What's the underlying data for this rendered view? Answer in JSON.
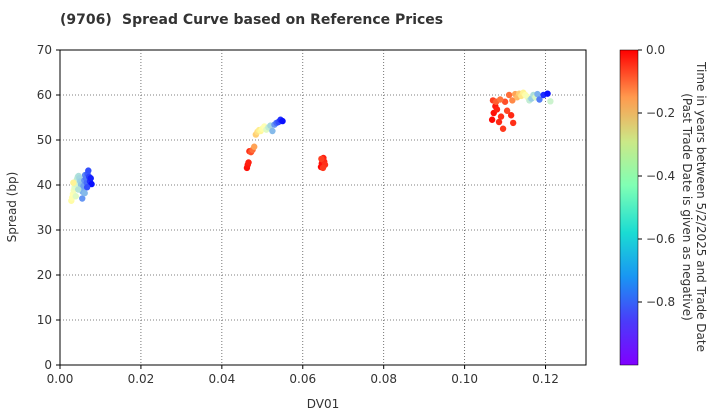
{
  "chart_data": {
    "type": "scatter",
    "code": "(9706)",
    "title": "Spread Curve based on Reference Prices",
    "xlabel": "DV01",
    "ylabel": "Spread (bp)",
    "xlim": [
      0,
      0.13
    ],
    "ylim": [
      0,
      70
    ],
    "x_ticks": [
      "0.00",
      "0.02",
      "0.04",
      "0.06",
      "0.08",
      "0.10",
      "0.12"
    ],
    "x_tick_values": [
      0,
      0.02,
      0.04,
      0.06,
      0.08,
      0.1,
      0.12
    ],
    "y_ticks": [
      "0",
      "10",
      "20",
      "30",
      "40",
      "50",
      "60",
      "70"
    ],
    "y_tick_values": [
      0,
      10,
      20,
      30,
      40,
      50,
      60,
      70
    ],
    "grid": true,
    "colorbar": {
      "label_line1": "Time in years between 5/2/2025 and Trade Date",
      "label_line2": "(Past Trade Date is given as negative)",
      "range": [
        -1.0,
        0.0
      ],
      "ticks": [
        "0.0",
        "−0.2",
        "−0.4",
        "−0.6",
        "−0.8"
      ],
      "tick_values": [
        0.0,
        -0.2,
        -0.4,
        -0.6,
        -0.8
      ],
      "colormap": "rainbow"
    },
    "clusters": [
      {
        "name": "cluster-1",
        "points": [
          {
            "x": 0.0028,
            "y": 36.5,
            "t": -0.45
          },
          {
            "x": 0.003,
            "y": 37.2,
            "t": -0.48
          },
          {
            "x": 0.0032,
            "y": 38.0,
            "t": -0.5
          },
          {
            "x": 0.0034,
            "y": 38.8,
            "t": -0.52
          },
          {
            "x": 0.0036,
            "y": 39.5,
            "t": -0.55
          },
          {
            "x": 0.0038,
            "y": 40.2,
            "t": -0.58
          },
          {
            "x": 0.004,
            "y": 40.8,
            "t": -0.6
          },
          {
            "x": 0.0042,
            "y": 41.3,
            "t": -0.62
          },
          {
            "x": 0.0044,
            "y": 41.8,
            "t": -0.64
          },
          {
            "x": 0.0046,
            "y": 42.0,
            "t": -0.66
          },
          {
            "x": 0.0048,
            "y": 41.5,
            "t": -0.68
          },
          {
            "x": 0.005,
            "y": 40.8,
            "t": -0.7
          },
          {
            "x": 0.0052,
            "y": 40.0,
            "t": -0.72
          },
          {
            "x": 0.0054,
            "y": 39.2,
            "t": -0.74
          },
          {
            "x": 0.0056,
            "y": 38.5,
            "t": -0.76
          },
          {
            "x": 0.0058,
            "y": 39.8,
            "t": -0.78
          },
          {
            "x": 0.006,
            "y": 41.0,
            "t": -0.8
          },
          {
            "x": 0.0062,
            "y": 42.2,
            "t": -0.82
          },
          {
            "x": 0.0064,
            "y": 41.5,
            "t": -0.84
          },
          {
            "x": 0.0066,
            "y": 40.5,
            "t": -0.86
          },
          {
            "x": 0.0068,
            "y": 42.5,
            "t": -0.88
          },
          {
            "x": 0.007,
            "y": 43.2,
            "t": -0.9
          },
          {
            "x": 0.0072,
            "y": 41.8,
            "t": -0.92
          },
          {
            "x": 0.0074,
            "y": 40.8,
            "t": -0.94
          },
          {
            "x": 0.0076,
            "y": 41.5,
            "t": -0.96
          },
          {
            "x": 0.0078,
            "y": 40.2,
            "t": -0.98
          },
          {
            "x": 0.0033,
            "y": 40.5,
            "t": -0.4
          },
          {
            "x": 0.0039,
            "y": 37.5,
            "t": -0.56
          },
          {
            "x": 0.0045,
            "y": 39.0,
            "t": -0.65
          },
          {
            "x": 0.0055,
            "y": 37.0,
            "t": -0.8
          },
          {
            "x": 0.0061,
            "y": 38.2,
            "t": -0.74
          },
          {
            "x": 0.0067,
            "y": 39.5,
            "t": -0.9
          }
        ]
      },
      {
        "name": "cluster-2",
        "points": [
          {
            "x": 0.0462,
            "y": 43.8,
            "t": -0.02
          },
          {
            "x": 0.0464,
            "y": 44.5,
            "t": -0.03
          },
          {
            "x": 0.0466,
            "y": 45.0,
            "t": -0.04
          },
          {
            "x": 0.0468,
            "y": 47.5,
            "t": -0.06
          },
          {
            "x": 0.0472,
            "y": 47.3,
            "t": -0.1
          },
          {
            "x": 0.0476,
            "y": 47.8,
            "t": -0.14
          },
          {
            "x": 0.048,
            "y": 48.5,
            "t": -0.22
          },
          {
            "x": 0.0484,
            "y": 51.2,
            "t": -0.3
          },
          {
            "x": 0.0488,
            "y": 51.8,
            "t": -0.34
          },
          {
            "x": 0.0492,
            "y": 52.2,
            "t": -0.38
          },
          {
            "x": 0.0496,
            "y": 52.0,
            "t": -0.42
          },
          {
            "x": 0.05,
            "y": 52.5,
            "t": -0.46
          },
          {
            "x": 0.0505,
            "y": 53.0,
            "t": -0.5
          },
          {
            "x": 0.051,
            "y": 52.3,
            "t": -0.56
          },
          {
            "x": 0.0515,
            "y": 52.8,
            "t": -0.62
          },
          {
            "x": 0.052,
            "y": 53.2,
            "t": -0.68
          },
          {
            "x": 0.0525,
            "y": 52.0,
            "t": -0.74
          },
          {
            "x": 0.053,
            "y": 53.4,
            "t": -0.8
          },
          {
            "x": 0.0535,
            "y": 53.8,
            "t": -0.86
          },
          {
            "x": 0.054,
            "y": 54.0,
            "t": -0.9
          },
          {
            "x": 0.0545,
            "y": 54.5,
            "t": -0.94
          },
          {
            "x": 0.055,
            "y": 54.2,
            "t": -0.98
          }
        ]
      },
      {
        "name": "cluster-3",
        "points": [
          {
            "x": 0.0645,
            "y": 44.0,
            "t": -0.01
          },
          {
            "x": 0.0647,
            "y": 44.8,
            "t": -0.02
          },
          {
            "x": 0.0649,
            "y": 45.5,
            "t": -0.03
          },
          {
            "x": 0.0651,
            "y": 46.0,
            "t": -0.04
          },
          {
            "x": 0.0653,
            "y": 45.2,
            "t": -0.05
          },
          {
            "x": 0.0655,
            "y": 44.5,
            "t": -0.06
          },
          {
            "x": 0.065,
            "y": 43.8,
            "t": -0.07
          },
          {
            "x": 0.0646,
            "y": 45.8,
            "t": -0.08
          }
        ]
      },
      {
        "name": "cluster-4",
        "points": [
          {
            "x": 0.1068,
            "y": 54.5,
            "t": -0.01
          },
          {
            "x": 0.1072,
            "y": 56.0,
            "t": -0.02
          },
          {
            "x": 0.1076,
            "y": 57.5,
            "t": -0.03
          },
          {
            "x": 0.108,
            "y": 56.8,
            "t": -0.04
          },
          {
            "x": 0.1085,
            "y": 54.0,
            "t": -0.05
          },
          {
            "x": 0.109,
            "y": 55.2,
            "t": -0.06
          },
          {
            "x": 0.1095,
            "y": 52.5,
            "t": -0.07
          },
          {
            "x": 0.107,
            "y": 58.8,
            "t": -0.08
          },
          {
            "x": 0.11,
            "y": 58.5,
            "t": -0.1
          },
          {
            "x": 0.1105,
            "y": 56.5,
            "t": -0.09
          },
          {
            "x": 0.1115,
            "y": 55.5,
            "t": -0.05
          },
          {
            "x": 0.112,
            "y": 53.8,
            "t": -0.06
          },
          {
            "x": 0.111,
            "y": 60.0,
            "t": -0.14
          },
          {
            "x": 0.1118,
            "y": 58.8,
            "t": -0.18
          },
          {
            "x": 0.1125,
            "y": 60.2,
            "t": -0.22
          },
          {
            "x": 0.113,
            "y": 59.5,
            "t": -0.26
          },
          {
            "x": 0.1135,
            "y": 60.3,
            "t": -0.3
          },
          {
            "x": 0.114,
            "y": 59.8,
            "t": -0.36
          },
          {
            "x": 0.1145,
            "y": 60.5,
            "t": -0.4
          },
          {
            "x": 0.115,
            "y": 60.0,
            "t": -0.46
          },
          {
            "x": 0.1155,
            "y": 59.6,
            "t": -0.52
          },
          {
            "x": 0.116,
            "y": 58.8,
            "t": -0.62
          },
          {
            "x": 0.1165,
            "y": 59.2,
            "t": -0.7
          },
          {
            "x": 0.117,
            "y": 60.0,
            "t": -0.66
          },
          {
            "x": 0.1175,
            "y": 59.5,
            "t": -0.58
          },
          {
            "x": 0.118,
            "y": 60.2,
            "t": -0.76
          },
          {
            "x": 0.1185,
            "y": 59.0,
            "t": -0.84
          },
          {
            "x": 0.1195,
            "y": 60.0,
            "t": -0.94
          },
          {
            "x": 0.1205,
            "y": 60.3,
            "t": -0.98
          },
          {
            "x": 0.1212,
            "y": 58.6,
            "t": -0.6
          },
          {
            "x": 0.1078,
            "y": 58.5,
            "t": -0.12
          },
          {
            "x": 0.1088,
            "y": 59.0,
            "t": -0.15
          }
        ]
      }
    ]
  }
}
